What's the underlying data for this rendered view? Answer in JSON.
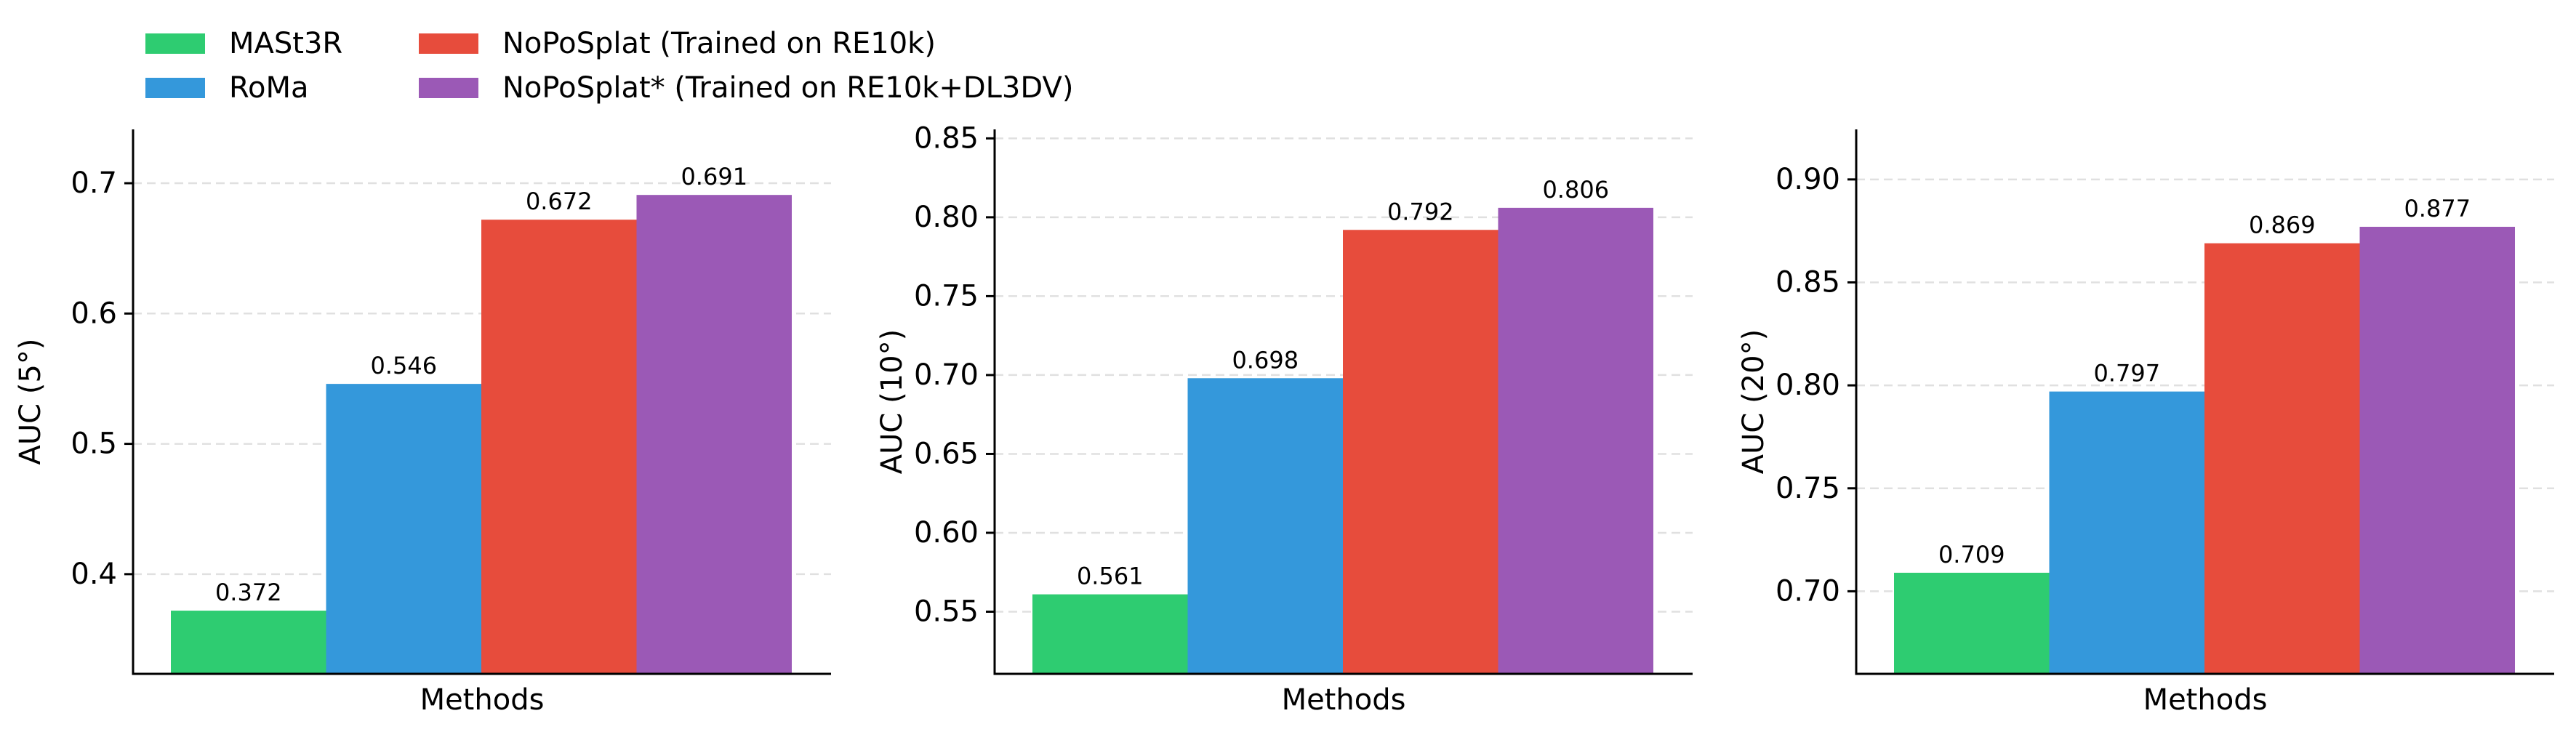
{
  "chart_data": [
    {
      "type": "bar",
      "categories": [
        "MASt3R",
        "RoMa",
        "NoPoSplat (Trained on RE10k)",
        "NoPoSplat* (Trained on RE10k+DL3DV)"
      ],
      "values": [
        0.372,
        0.546,
        0.672,
        0.691
      ],
      "value_labels": [
        "0.372",
        "0.546",
        "0.672",
        "0.691"
      ],
      "xlabel": "Methods",
      "ylabel": "AUC (5°)",
      "ylim": [
        0.3235,
        0.7413
      ],
      "yticks": [
        0.4,
        0.5,
        0.6,
        0.7
      ],
      "ytick_labels": [
        "0.4",
        "0.5",
        "0.6",
        "0.7"
      ],
      "grid": "horizontal dashed"
    },
    {
      "type": "bar",
      "categories": [
        "MASt3R",
        "RoMa",
        "NoPoSplat (Trained on RE10k)",
        "NoPoSplat* (Trained on RE10k+DL3DV)"
      ],
      "values": [
        0.561,
        0.698,
        0.792,
        0.806
      ],
      "value_labels": [
        "0.561",
        "0.698",
        "0.792",
        "0.806"
      ],
      "xlabel": "Methods",
      "ylabel": "AUC (10°)",
      "ylim": [
        0.5106,
        0.8557
      ],
      "yticks": [
        0.55,
        0.6,
        0.65,
        0.7,
        0.75,
        0.8,
        0.85
      ],
      "ytick_labels": [
        "0.55",
        "0.60",
        "0.65",
        "0.70",
        "0.75",
        "0.80",
        "0.85"
      ],
      "grid": "horizontal dashed"
    },
    {
      "type": "bar",
      "categories": [
        "MASt3R",
        "RoMa",
        "NoPoSplat (Trained on RE10k)",
        "NoPoSplat* (Trained on RE10k+DL3DV)"
      ],
      "values": [
        0.709,
        0.797,
        0.869,
        0.877
      ],
      "value_labels": [
        "0.709",
        "0.797",
        "0.869",
        "0.877"
      ],
      "xlabel": "Methods",
      "ylabel": "AUC (20°)",
      "ylim": [
        0.6599,
        0.9243
      ],
      "yticks": [
        0.7,
        0.75,
        0.8,
        0.85,
        0.9
      ],
      "ytick_labels": [
        "0.70",
        "0.75",
        "0.80",
        "0.85",
        "0.90"
      ],
      "grid": "horizontal dashed"
    }
  ],
  "legend": {
    "placement": "top-left",
    "entries": [
      {
        "label": "MASt3R",
        "color": "#2ecc71"
      },
      {
        "label": "RoMa",
        "color": "#3498db"
      },
      {
        "label": "NoPoSplat (Trained on RE10k)",
        "color": "#e74c3c"
      },
      {
        "label": "NoPoSplat* (Trained on RE10k+DL3DV)",
        "color": "#9b59b6"
      }
    ]
  },
  "colors": {
    "MASt3R": "#2ecc71",
    "RoMa": "#3498db",
    "NoPoSplat": "#e74c3c",
    "NoPoSplat*": "#9b59b6",
    "grid": "#e0e0e0",
    "axis": "#000000"
  }
}
